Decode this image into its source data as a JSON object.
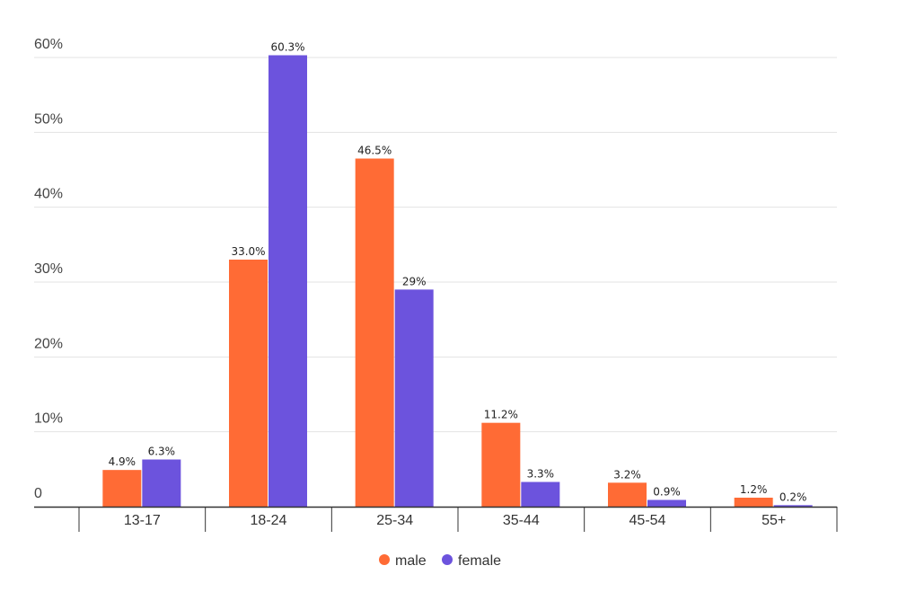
{
  "chart_data": {
    "type": "bar",
    "categories": [
      "13-17",
      "18-24",
      "25-34",
      "35-44",
      "45-54",
      "55+"
    ],
    "series": [
      {
        "name": "male",
        "color": "#ff6b35",
        "values": [
          4.9,
          33.0,
          46.5,
          11.2,
          3.2,
          1.2
        ],
        "labels": [
          "4.9%",
          "33.0%",
          "46.5%",
          "11.2%",
          "3.2%",
          "1.2%"
        ]
      },
      {
        "name": "female",
        "color": "#6c53dd",
        "values": [
          6.3,
          60.3,
          29,
          3.3,
          0.9,
          0.2
        ],
        "labels": [
          "6.3%",
          "60.3%",
          "29%",
          "3.3%",
          "0.9%",
          "0.2%"
        ]
      }
    ],
    "ylim": [
      0,
      60
    ],
    "yticks": [
      0,
      10,
      20,
      30,
      40,
      50,
      60
    ],
    "ytick_labels": [
      "0",
      "10%",
      "20%",
      "30%",
      "40%",
      "50%",
      "60%"
    ],
    "grid": true,
    "legend_position": "bottom-center"
  }
}
